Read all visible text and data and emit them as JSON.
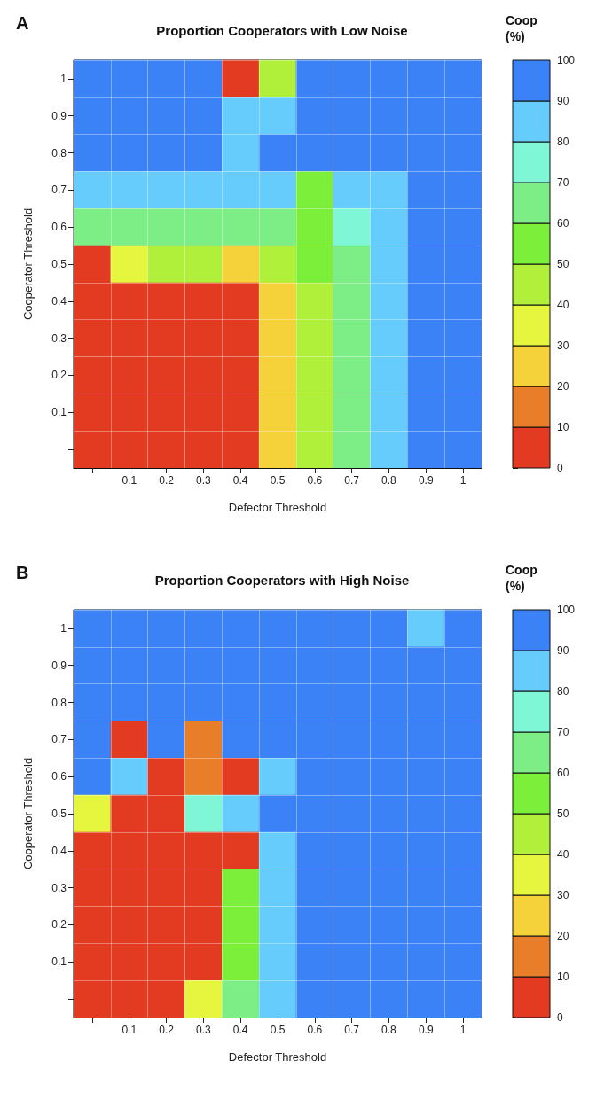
{
  "chart_data": [
    {
      "type": "heatmap",
      "title": "Proportion Cooperators with Low Noise",
      "xlabel": "Defector Threshold",
      "ylabel": "Cooperator Threshold",
      "clabel": "Coop (%)",
      "annotations": [
        "A"
      ],
      "grid": true,
      "categories": [
        null,
        "0.1",
        "0.2",
        "0.3",
        "0.4",
        "0.5",
        "0.6",
        "0.7",
        "0.8",
        "0.9",
        "1"
      ],
      "y_categories": [
        "1",
        "0.9",
        "0.8",
        "0.7",
        "0.6",
        "0.5",
        "0.4",
        "0.3",
        "0.2",
        "0.1",
        null
      ],
      "clim": [
        0,
        100
      ],
      "cticks": [
        0,
        10,
        20,
        30,
        40,
        50,
        60,
        70,
        80,
        90,
        100
      ],
      "colors": [
        "#e23b22",
        "#e87e2a",
        "#f5d13a",
        "#e6f53e",
        "#b0ef3a",
        "#7cef3a",
        "#7ded86",
        "#7ff6d6",
        "#66ccfb",
        "#3b82f6"
      ],
      "cells": [
        [
          100,
          100,
          100,
          100,
          5,
          50,
          100,
          100,
          100,
          100,
          100
        ],
        [
          100,
          100,
          100,
          100,
          88,
          88,
          100,
          100,
          100,
          100,
          100
        ],
        [
          100,
          100,
          100,
          100,
          88,
          100,
          95,
          100,
          100,
          100,
          100
        ],
        [
          88,
          88,
          88,
          88,
          85,
          85,
          60,
          85,
          88,
          100,
          100
        ],
        [
          70,
          70,
          70,
          70,
          70,
          70,
          55,
          75,
          85,
          100,
          100
        ],
        [
          10,
          40,
          45,
          42,
          30,
          45,
          55,
          70,
          88,
          100,
          100
        ],
        [
          2,
          2,
          2,
          2,
          5,
          25,
          45,
          65,
          85,
          100,
          100
        ],
        [
          2,
          2,
          2,
          2,
          2,
          22,
          45,
          68,
          88,
          100,
          100
        ],
        [
          2,
          2,
          2,
          2,
          2,
          22,
          45,
          68,
          88,
          100,
          100
        ],
        [
          2,
          2,
          2,
          2,
          2,
          22,
          45,
          68,
          88,
          100,
          100
        ],
        [
          2,
          2,
          2,
          2,
          2,
          22,
          45,
          68,
          88,
          100,
          100
        ]
      ]
    },
    {
      "type": "heatmap",
      "title": "Proportion Cooperators with High Noise",
      "xlabel": "Defector Threshold",
      "ylabel": "Cooperator Threshold",
      "clabel": "Coop (%)",
      "annotations": [
        "B"
      ],
      "grid": true,
      "categories": [
        null,
        "0.1",
        "0.2",
        "0.3",
        "0.4",
        "0.5",
        "0.6",
        "0.7",
        "0.8",
        "0.9",
        "1"
      ],
      "y_categories": [
        "1",
        "0.9",
        "0.8",
        "0.7",
        "0.6",
        "0.5",
        "0.4",
        "0.3",
        "0.2",
        "0.1",
        null
      ],
      "clim": [
        0,
        100
      ],
      "cticks": [
        0,
        10,
        20,
        30,
        40,
        50,
        60,
        70,
        80,
        90,
        100
      ],
      "colors": [
        "#e23b22",
        "#e87e2a",
        "#f5d13a",
        "#e6f53e",
        "#b0ef3a",
        "#7cef3a",
        "#7ded86",
        "#7ff6d6",
        "#66ccfb",
        "#3b82f6"
      ],
      "cells": [
        [
          100,
          100,
          100,
          100,
          100,
          100,
          100,
          100,
          100,
          88,
          100
        ],
        [
          100,
          100,
          100,
          100,
          100,
          100,
          100,
          100,
          100,
          100,
          100
        ],
        [
          100,
          100,
          100,
          100,
          100,
          100,
          100,
          100,
          100,
          100,
          100
        ],
        [
          100,
          5,
          100,
          15,
          100,
          100,
          100,
          100,
          100,
          100,
          100
        ],
        [
          92,
          85,
          5,
          15,
          5,
          88,
          100,
          100,
          100,
          100,
          100
        ],
        [
          40,
          5,
          8,
          75,
          88,
          92,
          100,
          100,
          100,
          100,
          100
        ],
        [
          5,
          5,
          5,
          3,
          5,
          85,
          100,
          100,
          100,
          100,
          100
        ],
        [
          2,
          2,
          2,
          5,
          60,
          90,
          100,
          100,
          100,
          100,
          100
        ],
        [
          2,
          2,
          2,
          3,
          55,
          88,
          100,
          100,
          100,
          100,
          100
        ],
        [
          2,
          2,
          2,
          3,
          55,
          88,
          100,
          100,
          100,
          100,
          100
        ],
        [
          2,
          2,
          5,
          40,
          70,
          88,
          100,
          100,
          100,
          100,
          100
        ]
      ]
    }
  ]
}
